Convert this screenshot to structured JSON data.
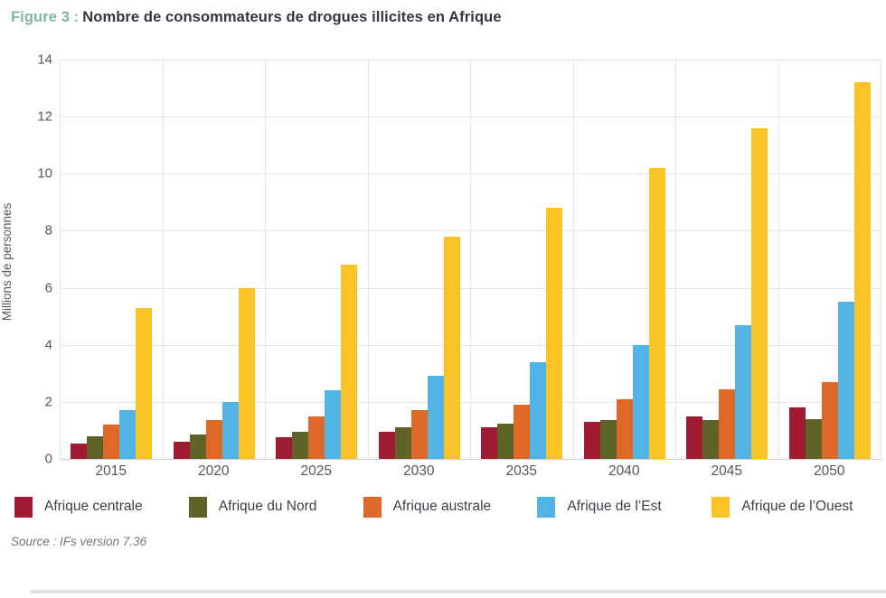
{
  "figure": {
    "label": "Figure 3 :",
    "title": "Nombre de consommateurs de drogues illicites en Afrique",
    "source": "Source : IFs version 7.36"
  },
  "colors": {
    "figure_label_green": "#7fb79c",
    "title_text": "#363541",
    "axis_text": "#57575b",
    "gridline": "#e3e3e3",
    "baseline": "#cfcfcf",
    "legend_text": "#3e3e47",
    "source_text": "#76767a"
  },
  "chart_data": {
    "type": "bar",
    "title": "Nombre de consommateurs de drogues illicites en Afrique",
    "xlabel": "",
    "ylabel": "Millions de personnes",
    "ylim": [
      0,
      14
    ],
    "ytick_step": 2,
    "yticks": [
      0,
      2,
      4,
      6,
      8,
      10,
      12,
      14
    ],
    "grid": true,
    "legend_position": "bottom",
    "categories": [
      "2015",
      "2020",
      "2025",
      "2030",
      "2035",
      "2040",
      "2045",
      "2050"
    ],
    "series": [
      {
        "name": "Afrique centrale",
        "color": "#9e1b32",
        "values": [
          0.55,
          0.6,
          0.75,
          0.95,
          1.1,
          1.3,
          1.5,
          1.8
        ]
      },
      {
        "name": "Afrique du Nord",
        "color": "#5f6327",
        "values": [
          0.8,
          0.85,
          0.95,
          1.1,
          1.25,
          1.35,
          1.35,
          1.4
        ]
      },
      {
        "name": "Afrique australe",
        "color": "#dd6827",
        "values": [
          1.2,
          1.35,
          1.5,
          1.7,
          1.9,
          2.1,
          2.45,
          2.7
        ]
      },
      {
        "name": "Afrique de l’Est",
        "color": "#52b4e5",
        "values": [
          1.7,
          2.0,
          2.4,
          2.9,
          3.4,
          4.0,
          4.7,
          5.5
        ]
      },
      {
        "name": "Afrique de l’Ouest",
        "color": "#fcc327",
        "values": [
          5.3,
          6.0,
          6.8,
          7.8,
          8.8,
          10.2,
          11.6,
          13.2
        ]
      }
    ]
  }
}
